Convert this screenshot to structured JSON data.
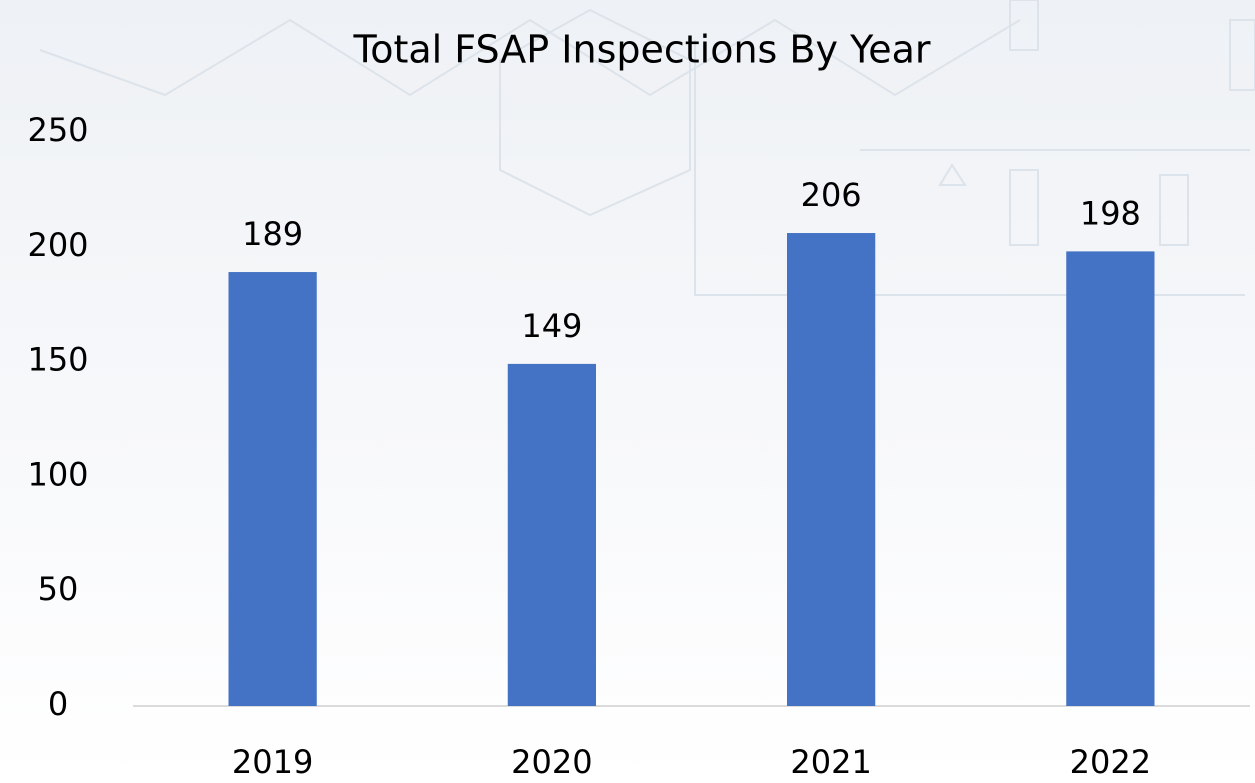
{
  "chart_data": {
    "type": "bar",
    "title": "Total FSAP Inspections By Year",
    "categories": [
      "2019",
      "2020",
      "2021",
      "2022"
    ],
    "values": [
      189,
      149,
      206,
      198
    ],
    "color": "#4472c4",
    "ylim": [
      0,
      250
    ],
    "yticks": [
      0,
      50,
      100,
      150,
      200,
      250
    ],
    "grid": false
  }
}
